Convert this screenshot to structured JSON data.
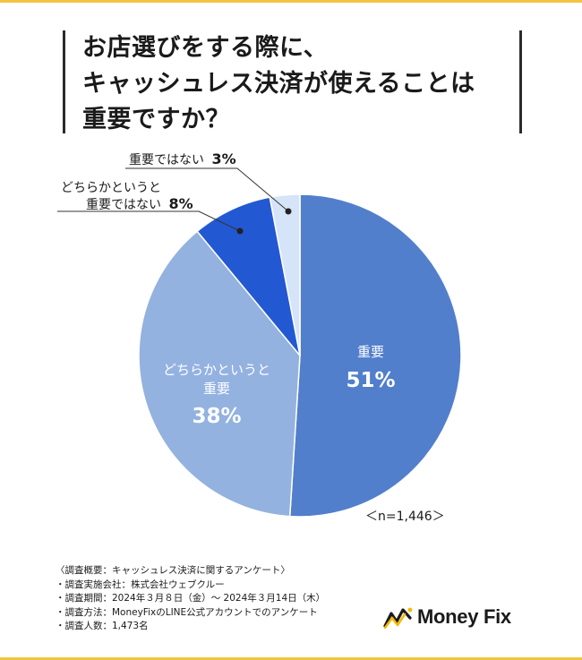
{
  "title": {
    "line1": "お店選びをする際に、",
    "line2": "キャッシュレス決済が使えることは",
    "line3": "重要ですか？"
  },
  "chart_data": {
    "type": "pie",
    "categories": [
      "重要",
      "どちらかというと重要",
      "どちらかというと重要ではない",
      "重要ではない"
    ],
    "values": [
      51,
      38,
      8,
      3
    ],
    "unit": "%",
    "colors": [
      "#527fcb",
      "#93b2e0",
      "#2358d3",
      "#d5e4f8"
    ],
    "labels": {
      "important": {
        "name": "重要",
        "value": "51%"
      },
      "somewhat_important": {
        "name_line1": "どちらかというと",
        "name_line2": "重要",
        "value": "38%"
      },
      "somewhat_not_important": {
        "name_line1": "どちらかというと",
        "name_line2": "重要ではない",
        "value": "8%"
      },
      "not_important": {
        "name": "重要ではない",
        "value": "3%"
      }
    },
    "sample_size": "＜n=1,446＞"
  },
  "notes": [
    "〈調査概要：キャッシュレス決済に関するアンケート〉",
    "・調査実施会社：株式会社ウェブクルー",
    "・調査期間：2024年３月８日（金）〜 2024年３月14日（木）",
    "・調査方法：MoneyFixのLINE公式アカウントでのアンケート",
    "・調査人数：1,473名"
  ],
  "logo": {
    "text": "Money Fix",
    "icon": "moneyfix-logo-icon"
  }
}
